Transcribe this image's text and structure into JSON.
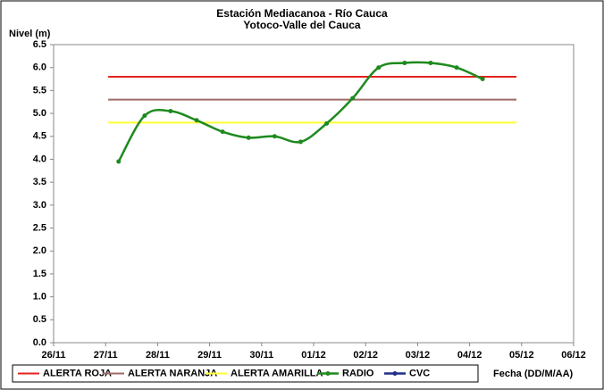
{
  "chart_data": {
    "type": "line",
    "title": "Estación Mediacanoa - Río Cauca",
    "subtitle": "Yotoco-Valle del Cauca",
    "ylabel": "Nivel (m)",
    "xlabel": "Fecha (DD/M/AA)",
    "xlim": [
      0,
      10
    ],
    "xticks": [
      {
        "value": 0,
        "label": "26/11"
      },
      {
        "value": 1,
        "label": "27/11"
      },
      {
        "value": 2,
        "label": "28/11"
      },
      {
        "value": 3,
        "label": "29/11"
      },
      {
        "value": 4,
        "label": "30/11"
      },
      {
        "value": 5,
        "label": "01/12"
      },
      {
        "value": 6,
        "label": "02/12"
      },
      {
        "value": 7,
        "label": "03/12"
      },
      {
        "value": 8,
        "label": "04/12"
      },
      {
        "value": 9,
        "label": "05/12"
      },
      {
        "value": 10,
        "label": "06/12"
      }
    ],
    "ylim": [
      0,
      6.5
    ],
    "yticks": [
      {
        "value": 0,
        "label": "0.0"
      },
      0.5,
      {
        "value": 1,
        "label": "1.0"
      },
      1.5,
      {
        "value": 2,
        "label": "2.0"
      },
      2.5,
      {
        "value": 3,
        "label": "3.0"
      },
      3.5,
      {
        "value": 4,
        "label": "4.0"
      },
      4.5,
      {
        "value": 5,
        "label": "5.0"
      },
      5.5,
      {
        "value": 6,
        "label": "6.0"
      },
      6.5
    ],
    "grid": false,
    "legend": "bottom",
    "series": [
      {
        "name": "ALERTA ROJA",
        "color": "#e3221c",
        "x": [
          1.05,
          8.9
        ],
        "values": [
          5.8,
          5.8
        ]
      },
      {
        "name": "ALERTA NARANJA",
        "color": "#9c6b67",
        "x": [
          1.05,
          8.9
        ],
        "values": [
          5.3,
          5.3
        ]
      },
      {
        "name": "ALERTA AMARILLA",
        "color": "#ffff33",
        "x": [
          1.05,
          8.9
        ],
        "values": [
          4.8,
          4.8
        ]
      },
      {
        "name": "RADIO",
        "color": "#1e8a1e",
        "markers": true,
        "smooth": true,
        "x": [
          1.25,
          1.75,
          2.25,
          2.75,
          3.25,
          3.75,
          4.25,
          4.75,
          5.25,
          5.75,
          6.25,
          6.75,
          7.25,
          7.75,
          8.25
        ],
        "values": [
          3.95,
          4.95,
          5.05,
          4.85,
          4.6,
          4.47,
          4.5,
          4.38,
          4.78,
          5.33,
          6.0,
          6.1,
          6.1,
          6.0,
          5.75
        ]
      },
      {
        "name": "CVC",
        "color": "#1f2f8a",
        "markers": true,
        "x": [],
        "values": []
      }
    ]
  }
}
